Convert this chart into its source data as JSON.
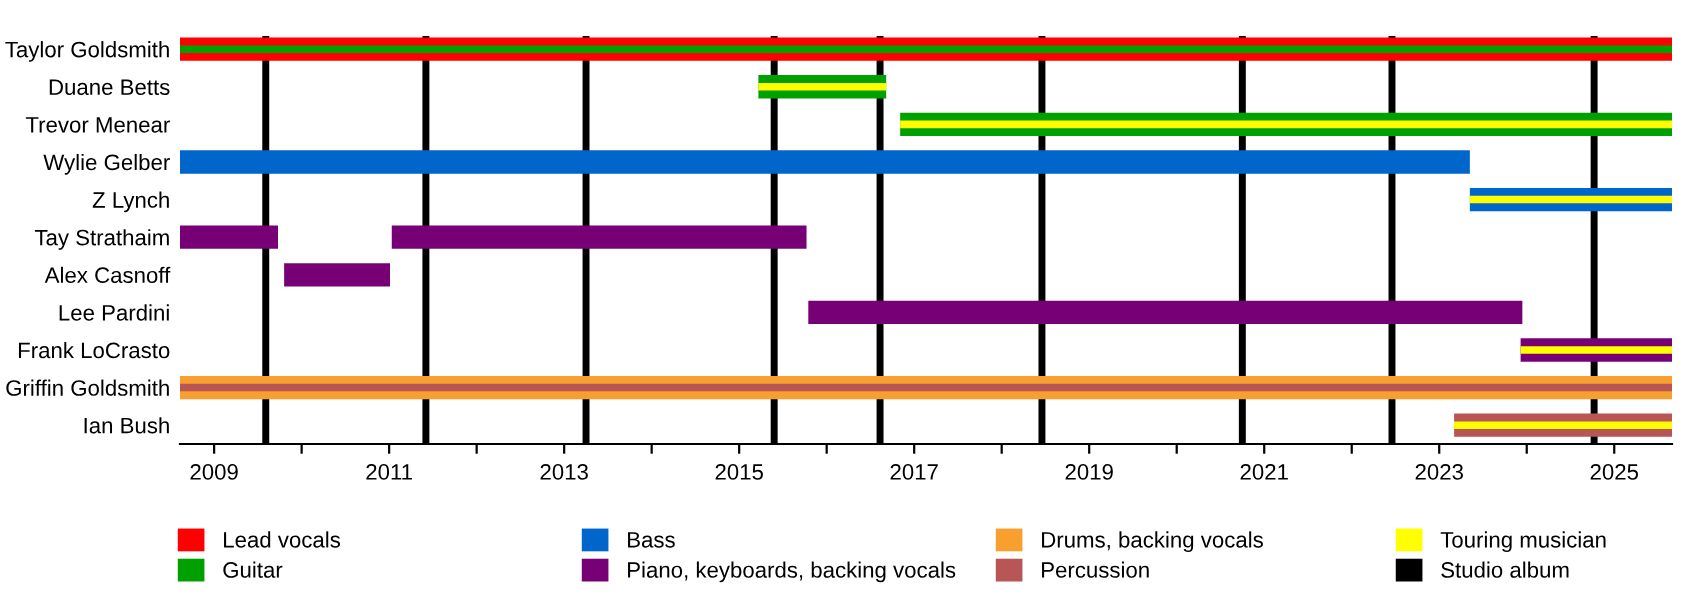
{
  "chart_data": {
    "type": "bar",
    "orientation": "horizontal",
    "categories": [
      "Taylor Goldsmith",
      "Duane Betts",
      "Trevor Menear",
      "Wylie Gelber",
      "Z Lynch",
      "Tay Strathaim",
      "Alex Casnoff",
      "Lee Pardini",
      "Frank LoCrasto",
      "Griffin Goldsmith",
      "Ian Bush"
    ],
    "series": [
      {
        "name": "Lead vocals",
        "color": "#ff0000",
        "base": [
          2008.61,
          null,
          null,
          null,
          null,
          null,
          null,
          null,
          null,
          null,
          null
        ],
        "values": [
          17.05,
          null,
          null,
          null,
          null,
          null,
          null,
          null,
          null,
          null,
          null
        ]
      },
      {
        "name": "Guitar",
        "color": "#00a000",
        "base": [
          2008.61,
          2015.22,
          2016.84,
          null,
          null,
          null,
          null,
          null,
          null,
          null,
          null
        ],
        "values": [
          17.05,
          1.46,
          8.82,
          null,
          null,
          null,
          null,
          null,
          null,
          null,
          null
        ]
      },
      {
        "name": "Bass",
        "color": "#0066cc",
        "base": [
          null,
          null,
          null,
          2008.61,
          2023.35,
          null,
          null,
          null,
          null,
          null,
          null
        ],
        "values": [
          null,
          null,
          null,
          14.74,
          2.31,
          null,
          null,
          null,
          null,
          null,
          null
        ]
      },
      {
        "name": "Piano, keyboards, backing vocals",
        "color": "#770077",
        "base": [
          null,
          null,
          null,
          null,
          null,
          2008.61,
          2009.8,
          2015.79,
          2023.93,
          null,
          null
        ],
        "values": [
          null,
          null,
          null,
          null,
          null,
          1.12,
          1.21,
          8.16,
          1.73,
          null,
          null
        ]
      },
      {
        "color": "#770077",
        "base": [
          null,
          null,
          null,
          null,
          null,
          2011.03,
          null,
          null,
          null,
          null,
          null
        ],
        "values": [
          null,
          null,
          null,
          null,
          null,
          4.74,
          null,
          null,
          null,
          null,
          null
        ]
      },
      {
        "name": "Drums, backing vocals",
        "color": "#f7a030",
        "base": [
          null,
          null,
          null,
          null,
          null,
          null,
          null,
          null,
          null,
          2008.61,
          null
        ],
        "values": [
          null,
          null,
          null,
          null,
          null,
          null,
          null,
          null,
          null,
          17.05,
          null
        ]
      },
      {
        "name": "Percussion",
        "color": "#b85555",
        "base": [
          null,
          null,
          null,
          null,
          null,
          null,
          null,
          null,
          null,
          2008.61,
          2023.17
        ],
        "values": [
          null,
          null,
          null,
          null,
          null,
          null,
          null,
          null,
          null,
          17.05,
          2.49
        ]
      },
      {
        "name": "Touring musician",
        "color": "#ffff00",
        "base": [
          null,
          2015.22,
          2016.84,
          null,
          2023.35,
          null,
          null,
          null,
          2023.93,
          null,
          2023.17
        ],
        "values": [
          null,
          1.46,
          8.82,
          null,
          2.31,
          null,
          null,
          null,
          1.73,
          null,
          2.49
        ]
      }
    ],
    "ref_lines": [
      {
        "axis": "x",
        "value": 2009.59,
        "label": "Studio album",
        "color": "#000000"
      },
      {
        "axis": "x",
        "value": 2011.42,
        "color": "#000000"
      },
      {
        "axis": "x",
        "value": 2013.25,
        "color": "#000000"
      },
      {
        "axis": "x",
        "value": 2015.4,
        "color": "#000000"
      },
      {
        "axis": "x",
        "value": 2016.61,
        "color": "#000000"
      },
      {
        "axis": "x",
        "value": 2018.46,
        "color": "#000000"
      },
      {
        "axis": "x",
        "value": 2020.75,
        "color": "#000000"
      },
      {
        "axis": "x",
        "value": 2022.46,
        "color": "#000000"
      },
      {
        "axis": "x",
        "value": 2024.77,
        "color": "#000000"
      }
    ],
    "xlim": [
      2008.61,
      2025.66
    ],
    "xticks": [
      2009,
      {
        "value": 2010,
        "label": null
      },
      2011,
      {
        "value": 2012,
        "label": null
      },
      2013,
      {
        "value": 2014,
        "label": null
      },
      2015,
      {
        "value": 2016,
        "label": null
      },
      2017,
      {
        "value": 2018,
        "label": null
      },
      2019,
      {
        "value": 2020,
        "label": null
      },
      2021,
      {
        "value": 2022,
        "label": null
      },
      2023,
      {
        "value": 2024,
        "label": null
      },
      2025
    ],
    "grid": false,
    "legend": "bottom"
  }
}
